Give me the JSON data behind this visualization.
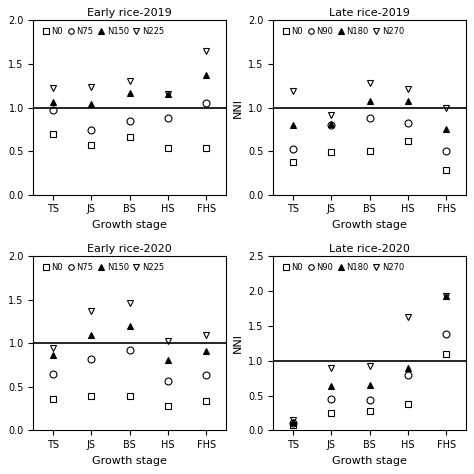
{
  "subplots": [
    {
      "title": "Early rice-2019",
      "legend_labels": [
        "N0",
        "N75",
        "N150",
        "N225"
      ],
      "ylim": [
        0.0,
        2.0
      ],
      "yticks": [
        0.0,
        0.5,
        1.0,
        1.5,
        2.0
      ],
      "show_ylabel": false,
      "data": {
        "N0": [
          0.7,
          0.57,
          0.66,
          0.54,
          0.54
        ],
        "N75": [
          0.97,
          0.74,
          0.85,
          0.88,
          1.05
        ],
        "N150": [
          1.07,
          1.04,
          1.17,
          1.16,
          1.38
        ],
        "N225": [
          1.22,
          1.24,
          1.31,
          1.16,
          1.65
        ]
      }
    },
    {
      "title": "Late rice-2019",
      "legend_labels": [
        "N0",
        "N90",
        "N180",
        "N270"
      ],
      "ylim": [
        0.0,
        2.0
      ],
      "yticks": [
        0.0,
        0.5,
        1.0,
        1.5,
        2.0
      ],
      "show_ylabel": true,
      "data": {
        "N0": [
          0.38,
          0.49,
          0.5,
          0.62,
          0.28
        ],
        "N90": [
          0.52,
          0.8,
          0.88,
          0.82,
          0.5
        ],
        "N180": [
          0.8,
          0.81,
          1.08,
          1.08,
          0.76
        ],
        "N270": [
          1.19,
          0.92,
          1.28,
          1.21,
          1.0
        ]
      }
    },
    {
      "title": "Early rice-2020",
      "legend_labels": [
        "N0",
        "N75",
        "N150",
        "N225"
      ],
      "ylim": [
        0.0,
        2.0
      ],
      "yticks": [
        0.0,
        0.5,
        1.0,
        1.5,
        2.0
      ],
      "show_ylabel": false,
      "data": {
        "N0": [
          0.36,
          0.4,
          0.4,
          0.28,
          0.34
        ],
        "N75": [
          0.65,
          0.82,
          0.92,
          0.57,
          0.64
        ],
        "N150": [
          0.86,
          1.1,
          1.2,
          0.81,
          0.91
        ],
        "N225": [
          0.95,
          1.37,
          1.46,
          1.03,
          1.1
        ]
      }
    },
    {
      "title": "Late rice-2020",
      "legend_labels": [
        "N0",
        "N90",
        "N180",
        "N270"
      ],
      "ylim": [
        0.0,
        2.5
      ],
      "yticks": [
        0.0,
        0.5,
        1.0,
        1.5,
        2.0,
        2.5
      ],
      "show_ylabel": true,
      "data": {
        "N0": [
          0.08,
          0.25,
          0.28,
          0.38,
          1.1
        ],
        "N90": [
          0.1,
          0.45,
          0.43,
          0.8,
          1.38
        ],
        "N180": [
          0.12,
          0.63,
          0.65,
          0.9,
          1.93
        ],
        "N270": [
          0.15,
          0.9,
          0.93,
          1.62,
          1.93
        ]
      }
    }
  ],
  "x_labels": [
    "TS",
    "JS",
    "BS",
    "HS",
    "FHS"
  ],
  "xlabel": "Growth stage",
  "hline_y": 1.0,
  "markers": [
    "s",
    "o",
    "^",
    "v"
  ],
  "fills": [
    "none",
    "none",
    "black",
    "none"
  ],
  "background_color": "#ffffff"
}
